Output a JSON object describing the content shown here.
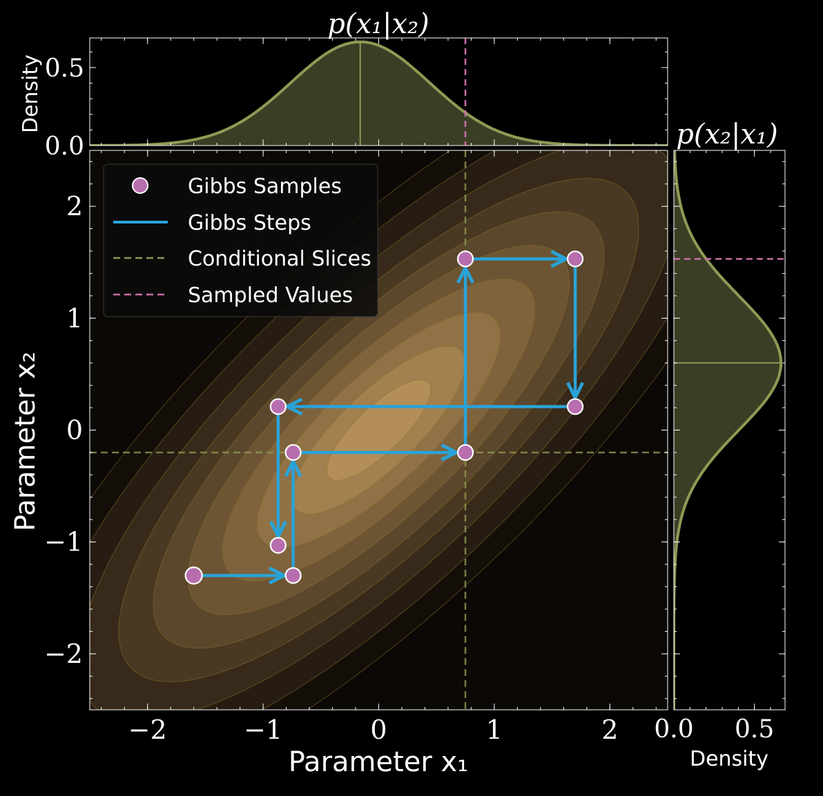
{
  "chart_data": {
    "type": "scatter",
    "title_top": "p(x₁|x₂)",
    "title_right": "p(x₂|x₁)",
    "xlabel": "Parameter x₁",
    "ylabel": "Parameter x₂",
    "top_ylabel": "Density",
    "right_xlabel": "Density",
    "xlim": [
      -2.5,
      2.5
    ],
    "ylim": [
      -2.5,
      2.5
    ],
    "xticks": [
      -2,
      -1,
      0,
      1,
      2
    ],
    "xtick_labels": [
      "−2",
      "−1",
      "0",
      "1",
      "2"
    ],
    "yticks": [
      -2,
      -1,
      0,
      1,
      2
    ],
    "ytick_labels": [
      "−2",
      "−1",
      "0",
      "1",
      "2"
    ],
    "density_ticks": [
      0.0,
      0.5
    ],
    "density_tick_labels": [
      "0.0",
      "0.5"
    ],
    "density_lim": [
      0,
      0.69
    ],
    "correlation": 0.8,
    "conditional_x2_slice": -0.2,
    "conditional_x1_slice": 0.75,
    "top_conditional": {
      "mean": -0.16,
      "std": 0.6,
      "sampled_value": 0.75
    },
    "right_conditional": {
      "mean": 0.6,
      "std": 0.6,
      "sampled_value": 1.53
    },
    "samples": [
      {
        "x": -1.6,
        "y": -1.3
      },
      {
        "x": -0.74,
        "y": -1.3
      },
      {
        "x": -0.74,
        "y": -0.2
      },
      {
        "x": 0.75,
        "y": -0.2
      },
      {
        "x": 0.75,
        "y": 1.53
      },
      {
        "x": 1.7,
        "y": 1.53
      },
      {
        "x": 1.7,
        "y": 0.21
      },
      {
        "x": -0.87,
        "y": 0.21
      },
      {
        "x": -0.87,
        "y": -1.03
      }
    ],
    "legend": {
      "position": "upper-left",
      "entries": [
        "Gibbs Samples",
        "Gibbs Steps",
        "Conditional Slices",
        "Sampled Values"
      ]
    },
    "colors": {
      "background": "#000000",
      "sample": "#b86eae",
      "steps": "#2aa3d8",
      "conditional": "#8f9a55",
      "sampled": "#c86ea6",
      "density_fill": "#3a3e25"
    }
  }
}
